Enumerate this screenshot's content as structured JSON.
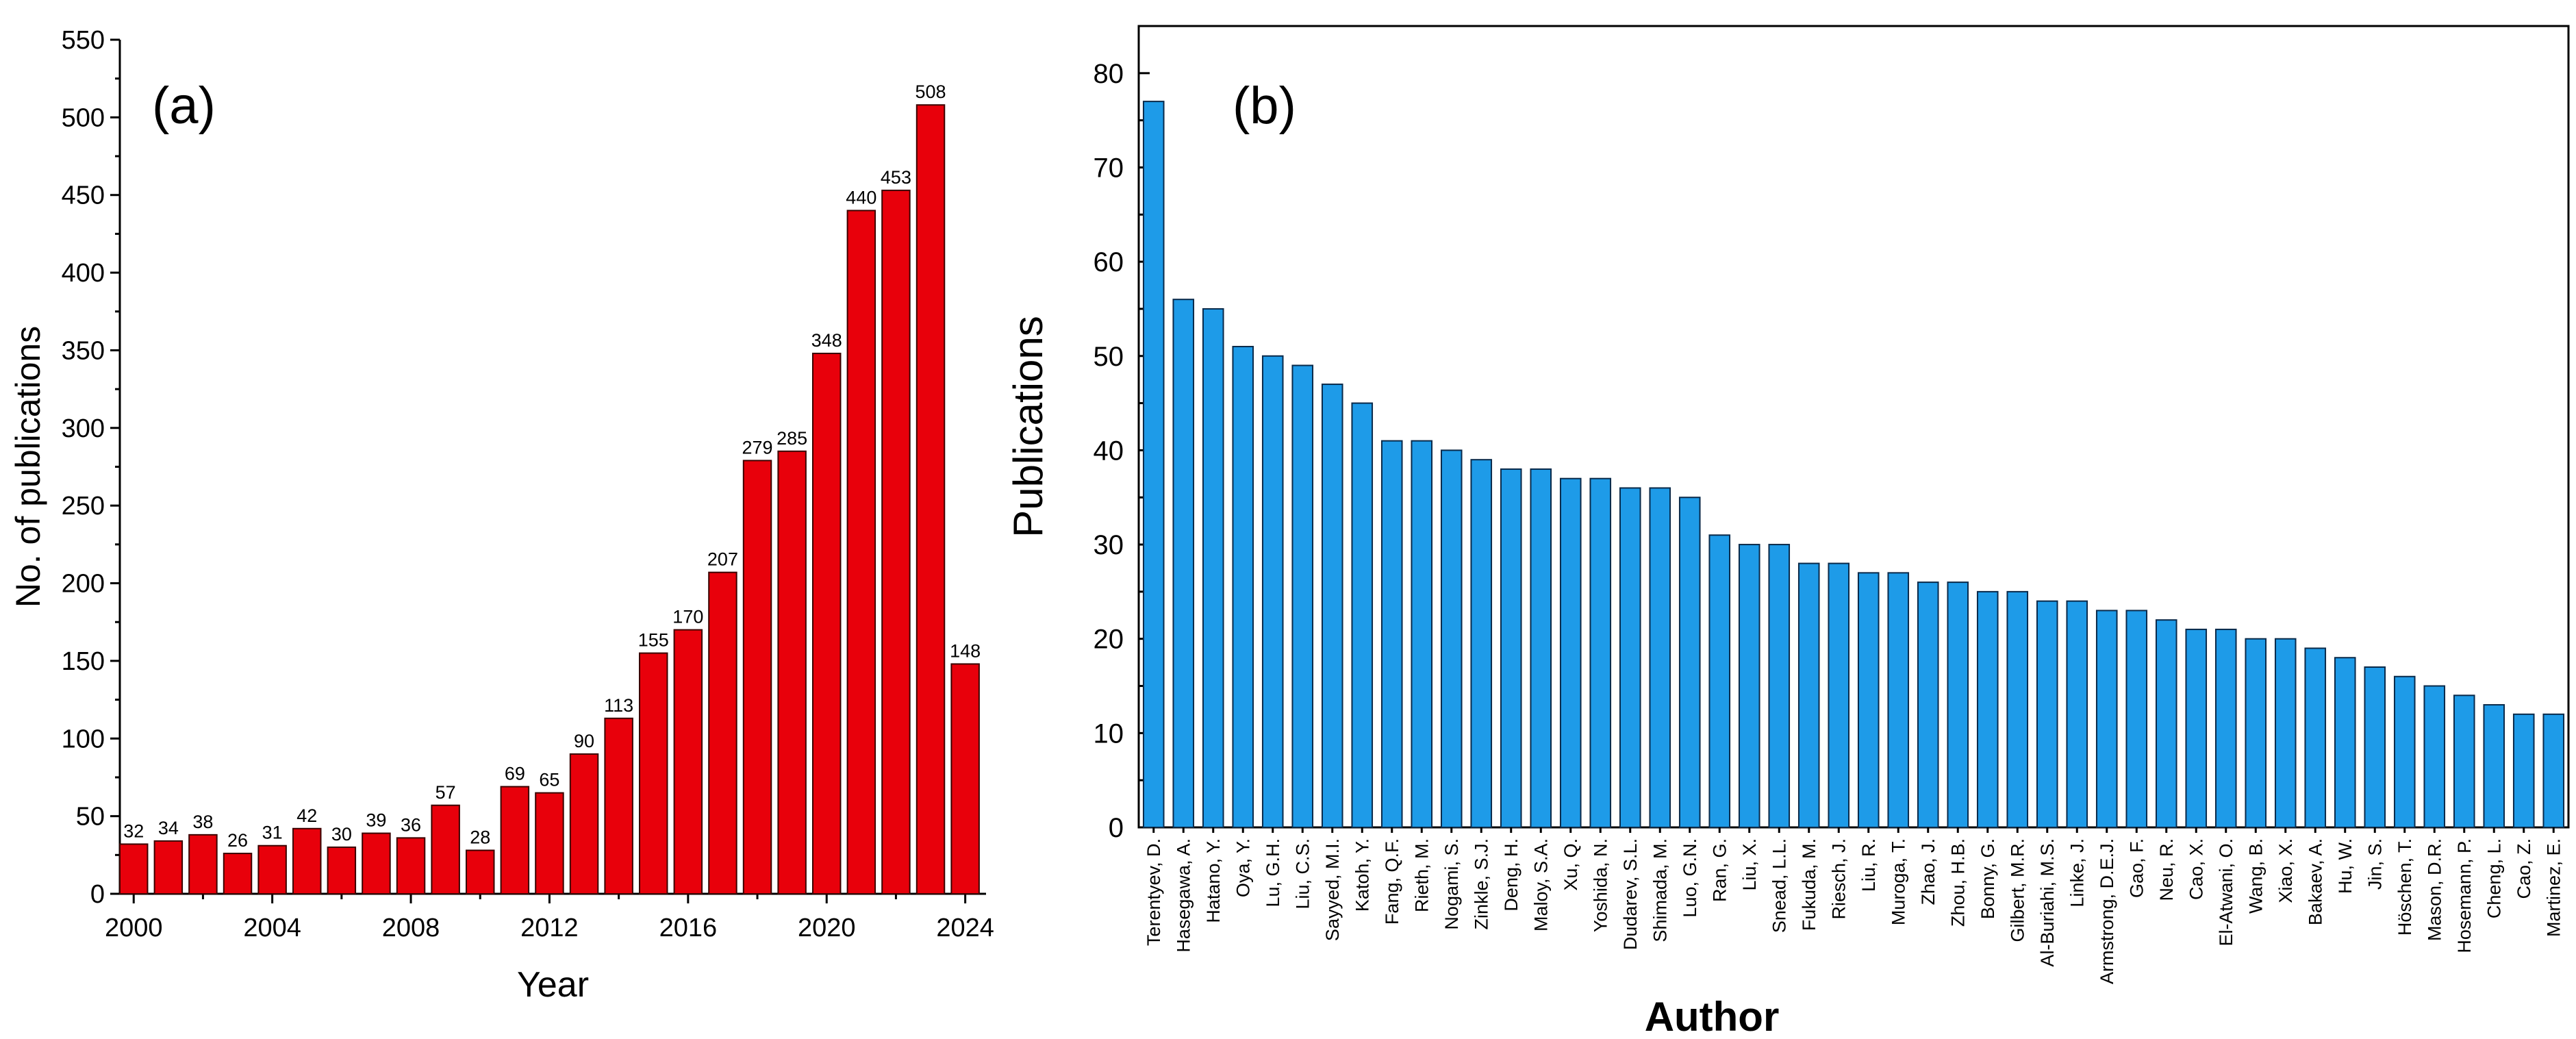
{
  "colors": {
    "panel_a_bar": "#e8000b",
    "panel_b_bar": "#1e9be8",
    "axis": "#000000"
  },
  "chart_data": [
    {
      "type": "bar",
      "panel_label": "(a)",
      "title": "",
      "xlabel": "Year",
      "ylabel": "No. of publications",
      "ylim": [
        0,
        550
      ],
      "yticks": [
        0,
        50,
        100,
        150,
        200,
        250,
        300,
        350,
        400,
        450,
        500,
        550
      ],
      "xticks": [
        2000,
        2004,
        2008,
        2012,
        2016,
        2020,
        2024
      ],
      "xlim": [
        1999.6,
        2024.6
      ],
      "categories": [
        2000,
        2001,
        2002,
        2003,
        2004,
        2005,
        2006,
        2007,
        2008,
        2009,
        2010,
        2011,
        2012,
        2013,
        2014,
        2015,
        2016,
        2017,
        2018,
        2019,
        2020,
        2021,
        2022,
        2023,
        2024
      ],
      "values": [
        32,
        34,
        38,
        26,
        31,
        42,
        30,
        39,
        36,
        57,
        28,
        69,
        65,
        90,
        113,
        155,
        170,
        207,
        279,
        285,
        348,
        440,
        453,
        508,
        148
      ]
    },
    {
      "type": "bar",
      "panel_label": "(b)",
      "title": "",
      "xlabel": "Author",
      "ylabel": "Publications",
      "ylim": [
        0,
        85
      ],
      "yticks": [
        0,
        10,
        20,
        30,
        40,
        50,
        60,
        70,
        80
      ],
      "categories": [
        "Terentyev, D.",
        "Hasegawa, A.",
        "Hatano, Y.",
        "Oya, Y.",
        "Lu, G.H.",
        "Liu, C.S.",
        "Sayyed, M.I.",
        "Katoh, Y.",
        "Fang, Q.F.",
        "Rieth, M.",
        "Nogami, S.",
        "Zinkle, S.J.",
        "Deng, H.",
        "Maloy, S.A.",
        "Xu, Q.",
        "Yoshida, N.",
        "Dudarev, S.L.",
        "Shimada, M.",
        "Luo, G.N.",
        "Ran, G.",
        "Liu, X.",
        "Snead, L.L.",
        "Fukuda, M.",
        "Riesch, J.",
        "Liu, R.",
        "Muroga, T.",
        "Zhao, J.",
        "Zhou, H.B.",
        "Bonny, G.",
        "Gilbert, M.R.",
        "Al-Buriahi, M.S.",
        "Linke, J.",
        "Armstrong, D.E.J.",
        "Gao, F.",
        "Neu, R.",
        "Cao, X.",
        "El-Atwani, O.",
        "Wang, B.",
        "Xiao, X.",
        "Bakaev, A.",
        "Hu, W.",
        "Jin, S.",
        "Höschen, T.",
        "Mason, D.R.",
        "Hosemann, P.",
        "Cheng, L.",
        "Cao, Z.",
        "Martinez, E."
      ],
      "values": [
        77,
        56,
        55,
        51,
        50,
        49,
        47,
        45,
        41,
        41,
        40,
        39,
        38,
        38,
        37,
        37,
        36,
        36,
        35,
        31,
        30,
        30,
        28,
        28,
        27,
        27,
        26,
        26,
        25,
        25,
        24,
        24,
        23,
        23,
        22,
        21,
        21,
        20,
        20,
        19,
        18,
        17,
        16,
        15,
        14,
        13,
        12,
        12
      ]
    }
  ]
}
